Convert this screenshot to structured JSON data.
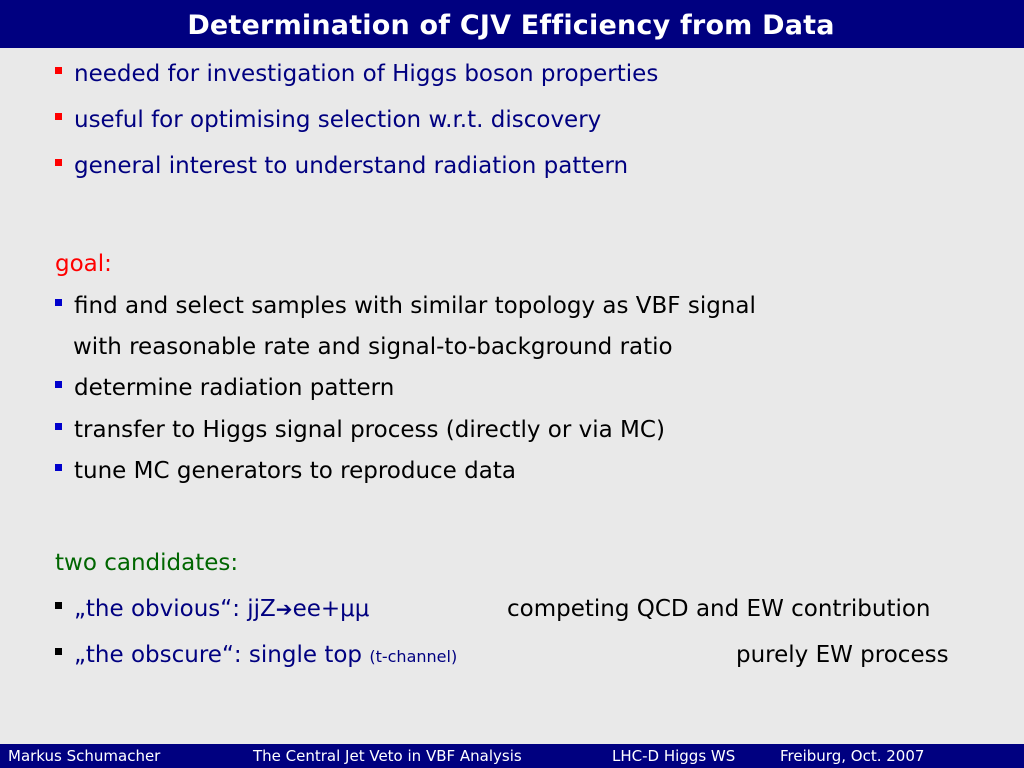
{
  "title": "Determination of CJV Efficiency from Data",
  "motivation": [
    "needed for investigation of Higgs boson properties",
    "useful for optimising selection w.r.t. discovery",
    "general interest to understand radiation pattern"
  ],
  "goal_label": "goal:",
  "goal_items": [
    "find and select samples with similar topology as VBF signal",
    "with reasonable rate and signal-to-background ratio",
    "determine radiation pattern",
    "transfer to Higgs signal process (directly or via MC)",
    "tune MC generators to reproduce data"
  ],
  "candidates_label": "two candidates:",
  "candidate1": {
    "left_prefix": "„the obvious“: jjZ",
    "arrow": "➔",
    "left_suffix": "ee+μμ",
    "right": "competing QCD and EW contribution"
  },
  "candidate2": {
    "left": "„the obscure“: single top",
    "small": "(t-channel)",
    "right": "purely EW process"
  },
  "footer": {
    "author": "Markus  Schumacher",
    "talk": "The Central Jet Veto in VBF Analysis",
    "workshop": "LHC-D Higgs WS",
    "place_date": "Freiburg, Oct. 2007"
  },
  "colors": {
    "bar": "#000080",
    "background": "#e9e9e9",
    "red": "#ff0000",
    "blue": "#000080",
    "green": "#006600"
  }
}
